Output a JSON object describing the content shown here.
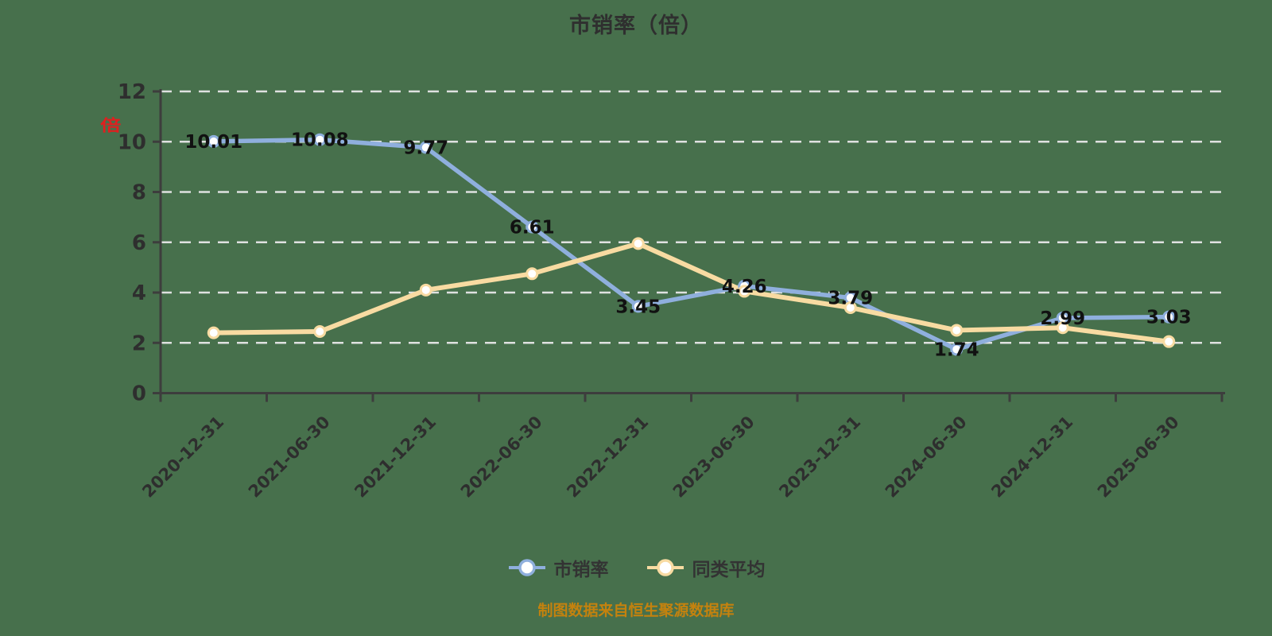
{
  "footer": "制图数据来自恒生聚源数据库",
  "colors": {
    "background": "#47704c",
    "grid": "#e8e8e8",
    "axis": "#3d3d3d",
    "tick_label": "#2e2e2e",
    "data_label": "#111111",
    "legend_text": "#333333",
    "footer_text": "#c4820e",
    "unit_label": "#e01f1f",
    "marker_fill": "#ffffff"
  },
  "chart_data": {
    "type": "line",
    "title": "市销率（倍）",
    "ylabel": "倍",
    "xlabel": "",
    "ylim": [
      0,
      12
    ],
    "y_ticks": [
      0,
      2,
      4,
      6,
      8,
      10,
      12
    ],
    "grid": true,
    "grid_style": "dashed",
    "legend_position": "bottom",
    "x_label_rotation": 45,
    "categories": [
      "2020-12-31",
      "2021-06-30",
      "2021-12-31",
      "2022-06-30",
      "2022-12-31",
      "2023-06-30",
      "2023-12-31",
      "2024-06-30",
      "2024-12-31",
      "2025-06-30"
    ],
    "series": [
      {
        "name": "市销率",
        "color": "#8fafdd",
        "show_labels": true,
        "values": [
          10.01,
          10.08,
          9.77,
          6.61,
          3.45,
          4.26,
          3.79,
          1.74,
          2.99,
          3.03
        ],
        "labels": [
          "10.01",
          "10.08",
          "9.77",
          "6.61",
          "3.45",
          "4.26",
          "3.79",
          "1.74",
          "2.99",
          "3.03"
        ]
      },
      {
        "name": "同类平均",
        "color": "#f8dba2",
        "show_labels": false,
        "values": [
          2.4,
          2.45,
          4.1,
          4.75,
          5.95,
          4.05,
          3.4,
          2.5,
          2.6,
          2.05
        ],
        "labels": []
      }
    ]
  }
}
